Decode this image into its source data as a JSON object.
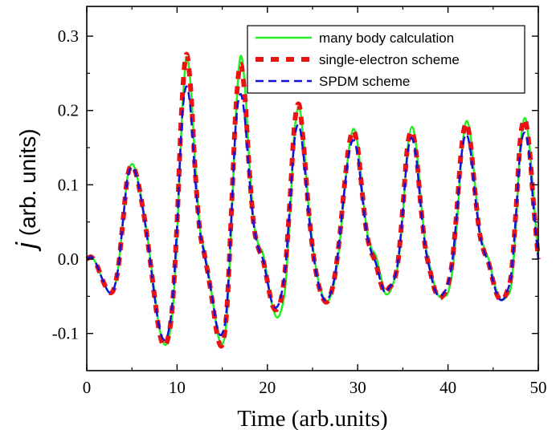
{
  "chart_data": {
    "type": "line",
    "xlabel": "Time (arb.units)",
    "ylabel_symbol": "j",
    "ylabel_rest": " (arb. units)",
    "xlim": [
      0,
      50
    ],
    "ylim": [
      -0.15,
      0.34
    ],
    "xticks": [
      0,
      10,
      20,
      30,
      40,
      50
    ],
    "xtick_labels": [
      "0",
      "10",
      "20",
      "30",
      "40",
      "50"
    ],
    "yticks": [
      -0.1,
      0.0,
      0.1,
      0.2,
      0.3
    ],
    "ytick_labels": [
      "-0.1",
      "0.0",
      "0.1",
      "0.2",
      "0.3"
    ],
    "grid": false,
    "legend_position": "top-right",
    "series": [
      {
        "name": "many body calculation",
        "color": "#22ee22",
        "style": "solid",
        "points": [
          [
            0,
            0.0
          ],
          [
            0.5,
            0.003
          ],
          [
            1.0,
            -0.005
          ],
          [
            1.5,
            -0.02
          ],
          [
            2.0,
            -0.035
          ],
          [
            2.5,
            -0.045
          ],
          [
            3.0,
            -0.04
          ],
          [
            3.5,
            -0.01
          ],
          [
            4.0,
            0.05
          ],
          [
            4.5,
            0.11
          ],
          [
            5.0,
            0.128
          ],
          [
            5.5,
            0.115
          ],
          [
            6.0,
            0.085
          ],
          [
            6.5,
            0.048
          ],
          [
            7.0,
            0.005
          ],
          [
            7.5,
            -0.045
          ],
          [
            8.0,
            -0.09
          ],
          [
            8.5,
            -0.113
          ],
          [
            9.0,
            -0.11
          ],
          [
            9.5,
            -0.07
          ],
          [
            10.0,
            0.03
          ],
          [
            10.5,
            0.18
          ],
          [
            11.0,
            0.27
          ],
          [
            11.5,
            0.235
          ],
          [
            12.0,
            0.13
          ],
          [
            12.5,
            0.045
          ],
          [
            13.0,
            0.012
          ],
          [
            13.5,
            -0.02
          ],
          [
            14.0,
            -0.06
          ],
          [
            14.5,
            -0.1
          ],
          [
            15.0,
            -0.115
          ],
          [
            15.5,
            -0.08
          ],
          [
            16.0,
            0.04
          ],
          [
            16.5,
            0.19
          ],
          [
            17.0,
            0.272
          ],
          [
            17.5,
            0.235
          ],
          [
            18.0,
            0.13
          ],
          [
            18.5,
            0.05
          ],
          [
            19.0,
            0.02
          ],
          [
            19.5,
            0.008
          ],
          [
            20.0,
            -0.025
          ],
          [
            20.5,
            -0.06
          ],
          [
            21.0,
            -0.078
          ],
          [
            21.5,
            -0.07
          ],
          [
            22.0,
            -0.035
          ],
          [
            22.5,
            0.06
          ],
          [
            23.0,
            0.17
          ],
          [
            23.5,
            0.205
          ],
          [
            24.0,
            0.16
          ],
          [
            24.5,
            0.08
          ],
          [
            25.0,
            0.02
          ],
          [
            25.5,
            -0.02
          ],
          [
            26.0,
            -0.045
          ],
          [
            26.5,
            -0.057
          ],
          [
            27.0,
            -0.05
          ],
          [
            27.5,
            -0.025
          ],
          [
            28.0,
            0.02
          ],
          [
            28.5,
            0.085
          ],
          [
            29.0,
            0.145
          ],
          [
            29.5,
            0.175
          ],
          [
            30.0,
            0.155
          ],
          [
            30.5,
            0.095
          ],
          [
            31.0,
            0.04
          ],
          [
            31.5,
            0.015
          ],
          [
            32.0,
            0.005
          ],
          [
            32.5,
            -0.02
          ],
          [
            33.0,
            -0.045
          ],
          [
            33.5,
            -0.045
          ],
          [
            34.0,
            -0.03
          ],
          [
            34.5,
            -0.005
          ],
          [
            35.0,
            0.06
          ],
          [
            35.5,
            0.145
          ],
          [
            36.0,
            0.178
          ],
          [
            36.5,
            0.15
          ],
          [
            37.0,
            0.08
          ],
          [
            37.5,
            0.02
          ],
          [
            38.0,
            -0.01
          ],
          [
            38.5,
            -0.035
          ],
          [
            39.0,
            -0.05
          ],
          [
            39.5,
            -0.05
          ],
          [
            40.0,
            -0.045
          ],
          [
            40.5,
            -0.015
          ],
          [
            41.0,
            0.05
          ],
          [
            41.5,
            0.14
          ],
          [
            42.0,
            0.185
          ],
          [
            42.5,
            0.165
          ],
          [
            43.0,
            0.1
          ],
          [
            43.5,
            0.04
          ],
          [
            44.0,
            0.015
          ],
          [
            44.5,
            0.0
          ],
          [
            45.0,
            -0.025
          ],
          [
            45.5,
            -0.048
          ],
          [
            46.0,
            -0.055
          ],
          [
            46.5,
            -0.05
          ],
          [
            47.0,
            -0.035
          ],
          [
            47.5,
            0.04
          ],
          [
            48.0,
            0.15
          ],
          [
            48.5,
            0.19
          ],
          [
            49.0,
            0.155
          ],
          [
            49.5,
            0.08
          ],
          [
            50.0,
            0.0
          ]
        ]
      },
      {
        "name": "single-electron scheme",
        "color": "#ee1111",
        "style": "dash",
        "points": [
          [
            0,
            0.0
          ],
          [
            0.5,
            0.003
          ],
          [
            1.0,
            -0.005
          ],
          [
            1.5,
            -0.02
          ],
          [
            2.0,
            -0.035
          ],
          [
            2.5,
            -0.045
          ],
          [
            3.0,
            -0.04
          ],
          [
            3.5,
            -0.01
          ],
          [
            4.0,
            0.05
          ],
          [
            4.5,
            0.11
          ],
          [
            5.0,
            0.126
          ],
          [
            5.5,
            0.113
          ],
          [
            6.0,
            0.083
          ],
          [
            6.5,
            0.046
          ],
          [
            7.0,
            0.0
          ],
          [
            7.5,
            -0.05
          ],
          [
            8.0,
            -0.095
          ],
          [
            8.5,
            -0.116
          ],
          [
            9.0,
            -0.106
          ],
          [
            9.5,
            -0.06
          ],
          [
            10.0,
            0.05
          ],
          [
            10.5,
            0.2
          ],
          [
            11.0,
            0.275
          ],
          [
            11.5,
            0.23
          ],
          [
            12.0,
            0.12
          ],
          [
            12.5,
            0.04
          ],
          [
            13.0,
            0.008
          ],
          [
            13.5,
            -0.025
          ],
          [
            14.0,
            -0.065
          ],
          [
            14.5,
            -0.105
          ],
          [
            15.0,
            -0.115
          ],
          [
            15.5,
            -0.07
          ],
          [
            16.0,
            0.06
          ],
          [
            16.5,
            0.2
          ],
          [
            17.0,
            0.262
          ],
          [
            17.5,
            0.22
          ],
          [
            18.0,
            0.12
          ],
          [
            18.5,
            0.045
          ],
          [
            19.0,
            0.015
          ],
          [
            19.5,
            0.0
          ],
          [
            20.0,
            -0.03
          ],
          [
            20.5,
            -0.06
          ],
          [
            21.0,
            -0.068
          ],
          [
            21.5,
            -0.055
          ],
          [
            22.0,
            -0.01
          ],
          [
            22.5,
            0.08
          ],
          [
            23.0,
            0.18
          ],
          [
            23.5,
            0.208
          ],
          [
            24.0,
            0.155
          ],
          [
            24.5,
            0.075
          ],
          [
            25.0,
            0.015
          ],
          [
            25.5,
            -0.025
          ],
          [
            26.0,
            -0.048
          ],
          [
            26.5,
            -0.058
          ],
          [
            27.0,
            -0.048
          ],
          [
            27.5,
            -0.02
          ],
          [
            28.0,
            0.03
          ],
          [
            28.5,
            0.095
          ],
          [
            29.0,
            0.15
          ],
          [
            29.5,
            0.173
          ],
          [
            30.0,
            0.15
          ],
          [
            30.5,
            0.09
          ],
          [
            31.0,
            0.035
          ],
          [
            31.5,
            0.01
          ],
          [
            32.0,
            -0.005
          ],
          [
            32.5,
            -0.03
          ],
          [
            33.0,
            -0.045
          ],
          [
            33.5,
            -0.038
          ],
          [
            34.0,
            -0.03
          ],
          [
            34.5,
            0.0
          ],
          [
            35.0,
            0.07
          ],
          [
            35.5,
            0.15
          ],
          [
            36.0,
            0.172
          ],
          [
            36.5,
            0.14
          ],
          [
            37.0,
            0.07
          ],
          [
            37.5,
            0.015
          ],
          [
            38.0,
            -0.015
          ],
          [
            38.5,
            -0.04
          ],
          [
            39.0,
            -0.052
          ],
          [
            39.5,
            -0.048
          ],
          [
            40.0,
            -0.035
          ],
          [
            40.5,
            0.0
          ],
          [
            41.0,
            0.07
          ],
          [
            41.5,
            0.15
          ],
          [
            42.0,
            0.183
          ],
          [
            42.5,
            0.155
          ],
          [
            43.0,
            0.09
          ],
          [
            43.5,
            0.035
          ],
          [
            44.0,
            0.01
          ],
          [
            44.5,
            -0.005
          ],
          [
            45.0,
            -0.03
          ],
          [
            45.5,
            -0.05
          ],
          [
            46.0,
            -0.055
          ],
          [
            46.5,
            -0.045
          ],
          [
            47.0,
            -0.02
          ],
          [
            47.5,
            0.06
          ],
          [
            48.0,
            0.16
          ],
          [
            48.5,
            0.188
          ],
          [
            49.0,
            0.15
          ],
          [
            49.5,
            0.07
          ],
          [
            50.0,
            0.0
          ]
        ]
      },
      {
        "name": "SPDM scheme",
        "color": "#1111dd",
        "style": "dash",
        "points": [
          [
            0,
            0.0
          ],
          [
            0.5,
            0.003
          ],
          [
            1.0,
            -0.005
          ],
          [
            1.5,
            -0.02
          ],
          [
            2.0,
            -0.035
          ],
          [
            2.5,
            -0.045
          ],
          [
            3.0,
            -0.04
          ],
          [
            3.5,
            -0.01
          ],
          [
            4.0,
            0.05
          ],
          [
            4.5,
            0.108
          ],
          [
            5.0,
            0.124
          ],
          [
            5.5,
            0.112
          ],
          [
            6.0,
            0.082
          ],
          [
            6.5,
            0.045
          ],
          [
            7.0,
            0.0
          ],
          [
            7.5,
            -0.05
          ],
          [
            8.0,
            -0.09
          ],
          [
            8.5,
            -0.108
          ],
          [
            9.0,
            -0.1
          ],
          [
            9.5,
            -0.055
          ],
          [
            10.0,
            0.045
          ],
          [
            10.5,
            0.18
          ],
          [
            11.0,
            0.232
          ],
          [
            11.5,
            0.2
          ],
          [
            12.0,
            0.11
          ],
          [
            12.5,
            0.04
          ],
          [
            13.0,
            0.008
          ],
          [
            13.5,
            -0.025
          ],
          [
            14.0,
            -0.06
          ],
          [
            14.5,
            -0.095
          ],
          [
            15.0,
            -0.1
          ],
          [
            15.5,
            -0.065
          ],
          [
            16.0,
            0.055
          ],
          [
            16.5,
            0.18
          ],
          [
            17.0,
            0.222
          ],
          [
            17.5,
            0.19
          ],
          [
            18.0,
            0.11
          ],
          [
            18.5,
            0.045
          ],
          [
            19.0,
            0.015
          ],
          [
            19.5,
            0.0
          ],
          [
            20.0,
            -0.03
          ],
          [
            20.5,
            -0.058
          ],
          [
            21.0,
            -0.065
          ],
          [
            21.5,
            -0.05
          ],
          [
            22.0,
            -0.01
          ],
          [
            22.5,
            0.075
          ],
          [
            23.0,
            0.16
          ],
          [
            23.5,
            0.18
          ],
          [
            24.0,
            0.14
          ],
          [
            24.5,
            0.07
          ],
          [
            25.0,
            0.015
          ],
          [
            25.5,
            -0.025
          ],
          [
            26.0,
            -0.048
          ],
          [
            26.5,
            -0.056
          ],
          [
            27.0,
            -0.046
          ],
          [
            27.5,
            -0.02
          ],
          [
            28.0,
            0.03
          ],
          [
            28.5,
            0.09
          ],
          [
            29.0,
            0.14
          ],
          [
            29.5,
            0.16
          ],
          [
            30.0,
            0.14
          ],
          [
            30.5,
            0.085
          ],
          [
            31.0,
            0.035
          ],
          [
            31.5,
            0.01
          ],
          [
            32.0,
            -0.005
          ],
          [
            32.5,
            -0.028
          ],
          [
            33.0,
            -0.045
          ],
          [
            33.5,
            -0.038
          ],
          [
            34.0,
            -0.028
          ],
          [
            34.5,
            0.0
          ],
          [
            35.0,
            0.065
          ],
          [
            35.5,
            0.14
          ],
          [
            36.0,
            0.163
          ],
          [
            36.5,
            0.135
          ],
          [
            37.0,
            0.068
          ],
          [
            37.5,
            0.015
          ],
          [
            38.0,
            -0.015
          ],
          [
            38.5,
            -0.04
          ],
          [
            39.0,
            -0.05
          ],
          [
            39.5,
            -0.046
          ],
          [
            40.0,
            -0.033
          ],
          [
            40.5,
            0.0
          ],
          [
            41.0,
            0.065
          ],
          [
            41.5,
            0.14
          ],
          [
            42.0,
            0.168
          ],
          [
            42.5,
            0.145
          ],
          [
            43.0,
            0.085
          ],
          [
            43.5,
            0.035
          ],
          [
            44.0,
            0.01
          ],
          [
            44.5,
            -0.005
          ],
          [
            45.0,
            -0.03
          ],
          [
            45.5,
            -0.05
          ],
          [
            46.0,
            -0.055
          ],
          [
            46.5,
            -0.045
          ],
          [
            47.0,
            -0.02
          ],
          [
            47.5,
            0.055
          ],
          [
            48.0,
            0.145
          ],
          [
            48.5,
            0.17
          ],
          [
            49.0,
            0.14
          ],
          [
            49.5,
            0.065
          ],
          [
            50.0,
            0.0
          ]
        ]
      }
    ]
  }
}
